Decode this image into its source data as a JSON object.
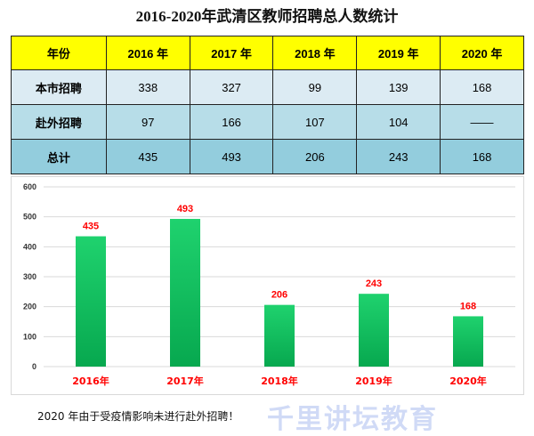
{
  "title": "2016-2020年武清区教师招聘总人数统计",
  "table": {
    "header": [
      "年份",
      "2016 年",
      "2017 年",
      "2018 年",
      "2019 年",
      "2020 年"
    ],
    "rows": [
      {
        "label": "本市招聘",
        "values": [
          "338",
          "327",
          "99",
          "139",
          "168"
        ]
      },
      {
        "label": "赴外招聘",
        "values": [
          "97",
          "166",
          "107",
          "104",
          "——"
        ]
      },
      {
        "label": "总计",
        "values": [
          "435",
          "493",
          "206",
          "243",
          "168"
        ]
      }
    ]
  },
  "chart_data": {
    "type": "bar",
    "categories": [
      "2016年",
      "2017年",
      "2018年",
      "2019年",
      "2020年"
    ],
    "values": [
      435,
      493,
      206,
      243,
      168
    ],
    "data_labels": [
      "435",
      "493",
      "206",
      "243",
      "168"
    ],
    "ylim": [
      0,
      600
    ],
    "yticks": [
      "0",
      "100",
      "200",
      "300",
      "400",
      "500",
      "600"
    ],
    "grid": true,
    "bar_color_top": "#1fd26e",
    "bar_color_bottom": "#07a84f",
    "label_color": "#ff0000"
  },
  "note": "2020 年由于受疫情影响未进行赴外招聘！",
  "watermark": "千里讲坛教育"
}
